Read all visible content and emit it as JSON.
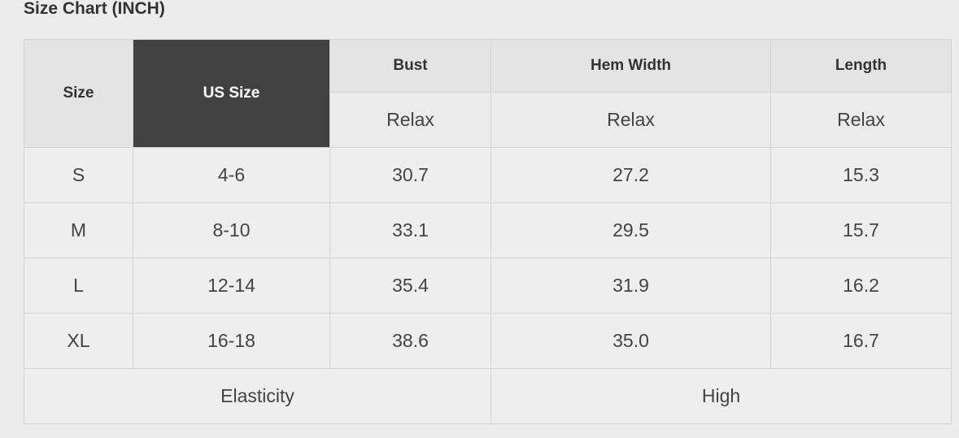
{
  "title": "Size Chart (INCH)",
  "headers": {
    "size": "Size",
    "us_size": "US Size",
    "bust": "Bust",
    "hem_width": "Hem Width",
    "length": "Length"
  },
  "subheaders": [
    "Relax",
    "Relax",
    "Relax"
  ],
  "rows": [
    [
      "S",
      "4-6",
      "30.7",
      "27.2",
      "15.3"
    ],
    [
      "M",
      "8-10",
      "33.1",
      "29.5",
      "15.7"
    ],
    [
      "L",
      "12-14",
      "35.4",
      "31.9",
      "16.2"
    ],
    [
      "XL",
      "16-18",
      "38.6",
      "35.0",
      "16.7"
    ]
  ],
  "footer": {
    "label": "Elasticity",
    "value": "High"
  },
  "colors": {
    "header_dark": "#414141"
  }
}
